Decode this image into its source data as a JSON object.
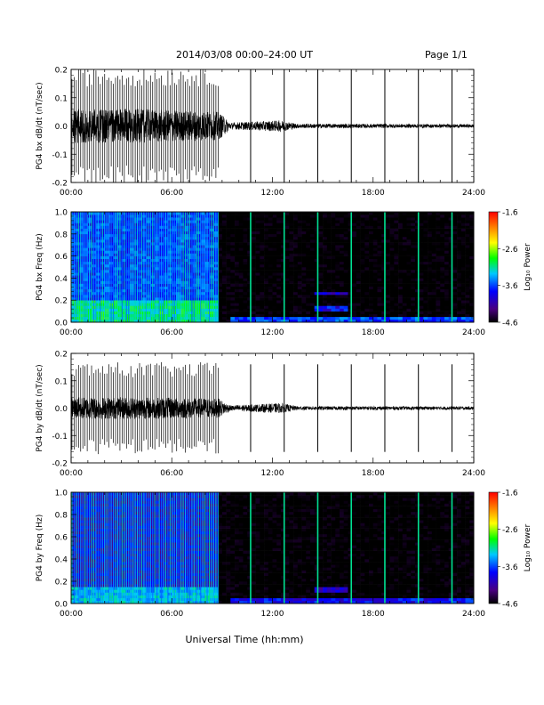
{
  "page": {
    "header": "2014/03/08   00:00–24:00 UT",
    "page_label": "Page 1/1",
    "footer_xlabel": "Universal Time (hh:mm)"
  },
  "colorbar": {
    "ticks": [
      "-1.6",
      "-2.6",
      "-3.6",
      "-4.6"
    ],
    "label": "Log₁₀ Power"
  },
  "chart_data": [
    {
      "type": "line",
      "ylabel": "PG4 bx dB/dt (nT/sec)",
      "xlim": [
        0,
        24
      ],
      "ylim": [
        -0.2,
        0.2
      ],
      "yticks": [
        "0.2",
        "0.1",
        "0.0",
        "-0.1",
        "-0.2"
      ],
      "xticks": [
        "00:00",
        "06:00",
        "12:00",
        "18:00",
        "24:00"
      ],
      "grid": false,
      "dense_spike_interval_hours": [
        0,
        8.8
      ],
      "isolated_spike_hours": [
        10.7,
        12.7,
        14.7,
        16.7,
        18.7,
        20.7,
        22.7
      ],
      "spike_amplitude": 0.2,
      "noise_envelope": [
        {
          "t": 0.0,
          "amp": 0.06
        },
        {
          "t": 4.0,
          "amp": 0.06
        },
        {
          "t": 8.8,
          "amp": 0.05
        },
        {
          "t": 9.5,
          "amp": 0.012
        },
        {
          "t": 12.5,
          "amp": 0.02
        },
        {
          "t": 13.5,
          "amp": 0.008
        },
        {
          "t": 24.0,
          "amp": 0.006
        }
      ]
    },
    {
      "type": "heatmap",
      "ylabel": "PG4 bx Freq (Hz)",
      "xlim": [
        0,
        24
      ],
      "ylim": [
        0.0,
        1.0
      ],
      "yticks": [
        "1.0",
        "0.8",
        "0.6",
        "0.4",
        "0.2",
        "0.0"
      ],
      "xticks": [
        "00:00",
        "06:00",
        "12:00",
        "18:00",
        "24:00"
      ],
      "zlim": [
        -4.6,
        -1.6
      ],
      "zlabel": "Log₁₀ Power",
      "dense_spike_interval_hours": [
        0,
        8.8
      ],
      "isolated_spike_hours": [
        10.7,
        12.7,
        14.7,
        16.7,
        18.7,
        20.7,
        22.7
      ],
      "features": [
        {
          "t_start": 0.0,
          "t_end": 8.8,
          "f_low": 0.0,
          "f_high": 0.2,
          "log_power": -3.0
        },
        {
          "t_start": 0.0,
          "t_end": 8.8,
          "f_low": 0.2,
          "f_high": 1.0,
          "log_power": -3.7
        },
        {
          "t_start": 9.5,
          "t_end": 24.0,
          "f_low": 0.0,
          "f_high": 0.05,
          "log_power": -3.6
        },
        {
          "t_start": 14.5,
          "t_end": 16.5,
          "f_low": 0.1,
          "f_high": 0.15,
          "log_power": -3.8
        },
        {
          "t_start": 14.5,
          "t_end": 16.5,
          "f_low": 0.24,
          "f_high": 0.28,
          "log_power": -3.9
        }
      ]
    },
    {
      "type": "line",
      "ylabel": "PG4 by dB/dt (nT/sec)",
      "xlim": [
        0,
        24
      ],
      "ylim": [
        -0.2,
        0.2
      ],
      "yticks": [
        "0.2",
        "0.1",
        "0.0",
        "-0.1",
        "-0.2"
      ],
      "xticks": [
        "00:00",
        "06:00",
        "12:00",
        "18:00",
        "24:00"
      ],
      "grid": false,
      "dense_spike_interval_hours": [
        0,
        8.8
      ],
      "isolated_spike_hours": [
        10.7,
        12.7,
        14.7,
        16.7,
        18.7,
        20.7,
        22.7
      ],
      "spike_amplitude": 0.16,
      "noise_envelope": [
        {
          "t": 0.0,
          "amp": 0.04
        },
        {
          "t": 4.0,
          "amp": 0.04
        },
        {
          "t": 8.8,
          "amp": 0.035
        },
        {
          "t": 9.5,
          "amp": 0.01
        },
        {
          "t": 12.5,
          "amp": 0.018
        },
        {
          "t": 13.5,
          "amp": 0.007
        },
        {
          "t": 24.0,
          "amp": 0.006
        }
      ]
    },
    {
      "type": "heatmap",
      "ylabel": "PG4 by Freq (Hz)",
      "xlim": [
        0,
        24
      ],
      "ylim": [
        0.0,
        1.0
      ],
      "yticks": [
        "1.0",
        "0.8",
        "0.6",
        "0.4",
        "0.2",
        "0.0"
      ],
      "xticks": [
        "00:00",
        "06:00",
        "12:00",
        "18:00",
        "24:00"
      ],
      "zlim": [
        -4.6,
        -1.6
      ],
      "zlabel": "Log₁₀ Power",
      "dense_spike_interval_hours": [
        0,
        8.8
      ],
      "isolated_spike_hours": [
        10.7,
        12.7,
        14.7,
        16.7,
        18.7,
        20.7,
        22.7
      ],
      "features": [
        {
          "t_start": 0.0,
          "t_end": 8.8,
          "f_low": 0.0,
          "f_high": 0.15,
          "log_power": -3.3
        },
        {
          "t_start": 0.0,
          "t_end": 8.8,
          "f_low": 0.15,
          "f_high": 1.0,
          "log_power": -4.0
        },
        {
          "t_start": 9.5,
          "t_end": 24.0,
          "f_low": 0.0,
          "f_high": 0.05,
          "log_power": -3.8
        },
        {
          "t_start": 14.5,
          "t_end": 16.5,
          "f_low": 0.1,
          "f_high": 0.15,
          "log_power": -4.0
        }
      ]
    }
  ]
}
